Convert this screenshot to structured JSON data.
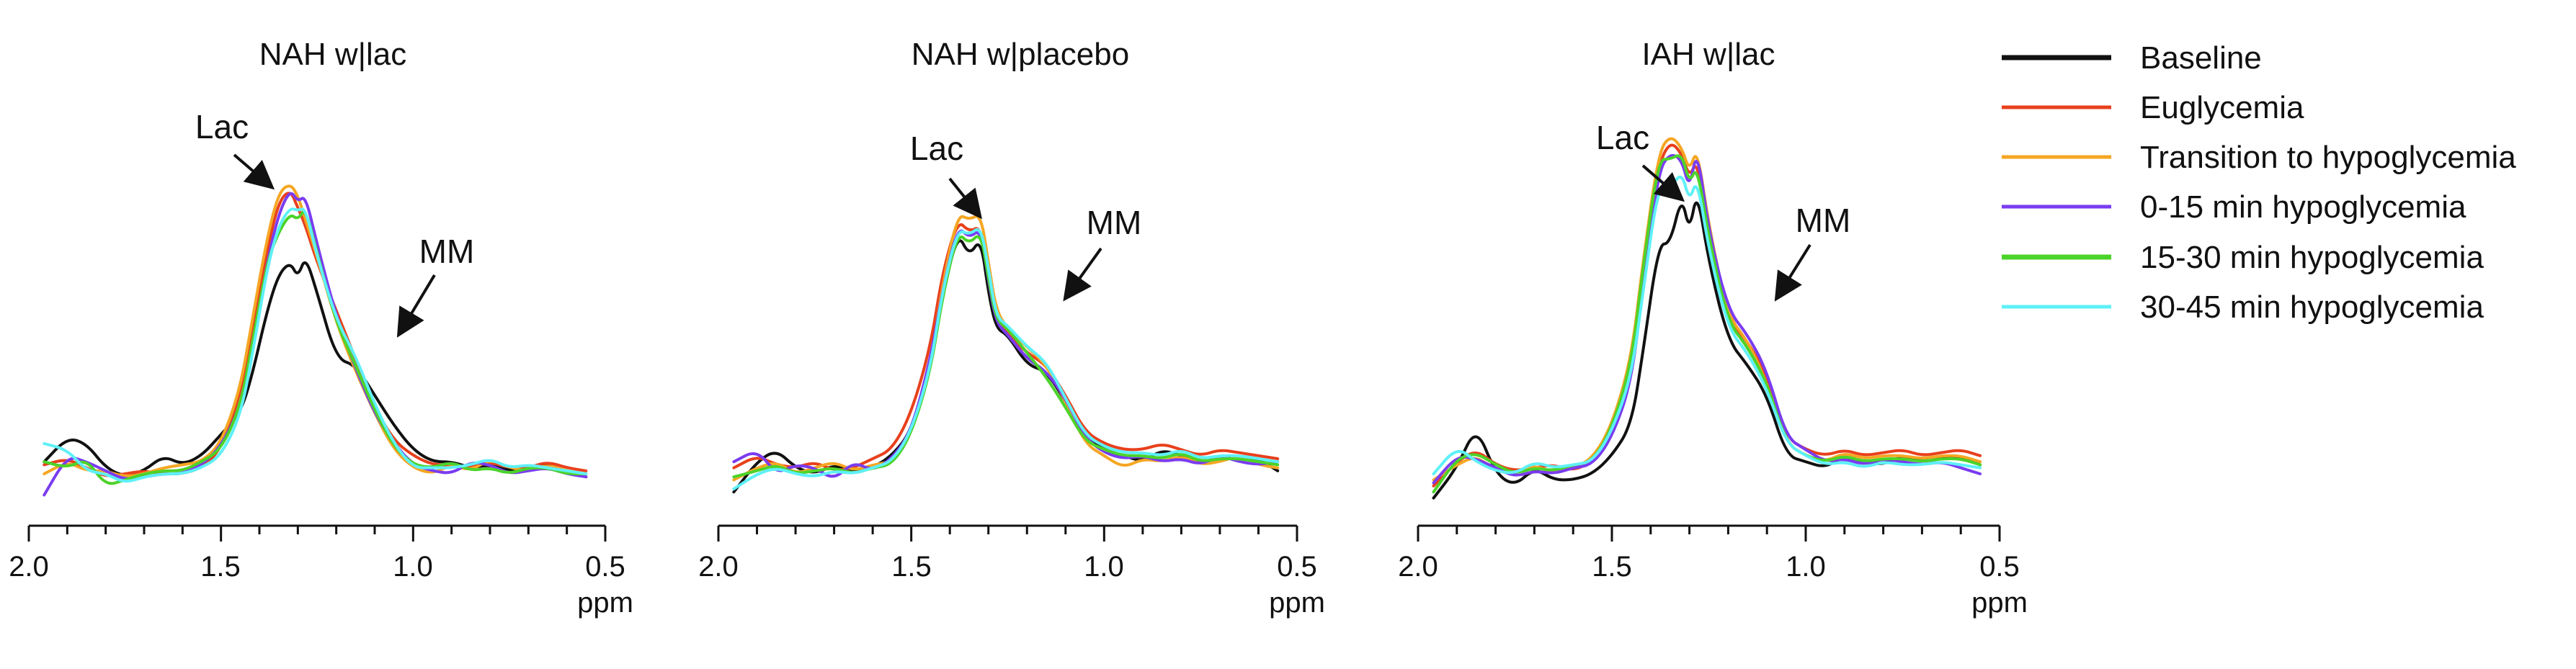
{
  "chart_data": {
    "type": "line",
    "xlabel": "ppm",
    "xlim": [
      2.0,
      0.5
    ],
    "x_ticks": [
      "2.0",
      "1.5",
      "1.0",
      "0.5"
    ],
    "x_tick_values": [
      2.0,
      1.5,
      1.0,
      0.5
    ],
    "minor_tick_step": 0.1,
    "grid": false,
    "legend_position": "right",
    "series_colors": {
      "Baseline": "#111111",
      "Euglycemia": "#e8401c",
      "Transition to hypoglycemia": "#f5a623",
      "0-15 min hypoglycemia": "#7a3cf0",
      "15-30 min hypoglycemia": "#4cd32a",
      "30-45 min hypoglycemia": "#5ef0f8"
    },
    "legend": [
      "Baseline",
      "Euglycemia",
      "Transition to hypoglycemia",
      "0-15 min hypoglycemia",
      "15-30 min hypoglycemia",
      "30-45 min hypoglycemia"
    ],
    "x": [
      1.96,
      1.9,
      1.85,
      1.8,
      1.75,
      1.7,
      1.65,
      1.6,
      1.55,
      1.5,
      1.45,
      1.42,
      1.38,
      1.35,
      1.32,
      1.3,
      1.28,
      1.25,
      1.2,
      1.15,
      1.1,
      1.05,
      1.0,
      0.95,
      0.9,
      0.85,
      0.8,
      0.75,
      0.7,
      0.65,
      0.6,
      0.55
    ],
    "panels": [
      {
        "title": "NAH w|lac",
        "annotations": [
          "Lac",
          "MM"
        ],
        "series": [
          {
            "name": "Baseline",
            "values": [
              1.4,
              2.2,
              2.0,
              1.2,
              0.9,
              1.1,
              1.6,
              1.3,
              1.6,
              2.3,
              3.0,
              4.2,
              6.4,
              7.6,
              8.0,
              7.5,
              8.2,
              7.0,
              4.8,
              4.6,
              3.6,
              2.6,
              1.8,
              1.4,
              1.4,
              1.2,
              1.3,
              1.1,
              1.2,
              1.3,
              1.1,
              0.9
            ]
          },
          {
            "name": "Euglycemia",
            "values": [
              1.3,
              1.5,
              1.2,
              0.9,
              1.0,
              1.1,
              1.0,
              1.0,
              1.2,
              1.8,
              3.6,
              5.6,
              8.4,
              10.0,
              10.4,
              9.8,
              9.2,
              8.0,
              6.4,
              4.8,
              3.2,
              2.1,
              1.6,
              1.3,
              1.3,
              1.2,
              1.4,
              1.2,
              1.2,
              1.4,
              1.2,
              1.1
            ]
          },
          {
            "name": "Transition to hypoglycemia",
            "values": [
              1.0,
              1.4,
              1.1,
              1.1,
              0.9,
              1.0,
              1.2,
              1.3,
              1.4,
              2.0,
              3.8,
              6.0,
              8.8,
              10.3,
              10.6,
              10.2,
              9.4,
              8.2,
              6.0,
              4.4,
              3.0,
              1.8,
              1.2,
              1.0,
              1.3,
              1.1,
              1.5,
              1.2,
              1.1,
              1.3,
              1.1,
              1.0
            ]
          },
          {
            "name": "0-15 min hypoglycemia",
            "values": [
              0.3,
              1.6,
              1.4,
              1.1,
              0.8,
              0.9,
              1.0,
              1.0,
              1.3,
              1.9,
              3.2,
              5.0,
              8.0,
              9.6,
              10.4,
              10.0,
              10.2,
              8.6,
              6.2,
              4.5,
              3.0,
              2.0,
              1.3,
              1.1,
              1.0,
              1.4,
              1.3,
              1.0,
              1.1,
              1.2,
              1.0,
              0.9
            ]
          },
          {
            "name": "15-30 min hypoglycemia",
            "values": [
              1.4,
              1.2,
              1.5,
              0.6,
              0.8,
              1.0,
              1.1,
              1.1,
              1.4,
              1.8,
              3.2,
              5.2,
              8.0,
              9.0,
              9.6,
              9.4,
              9.8,
              8.3,
              6.0,
              4.6,
              3.1,
              1.9,
              1.3,
              1.2,
              1.4,
              1.1,
              1.2,
              1.0,
              1.2,
              1.2,
              1.0,
              1.0
            ]
          },
          {
            "name": "30-45 min hypoglycemia",
            "values": [
              2.0,
              1.8,
              1.1,
              1.0,
              0.7,
              0.9,
              1.0,
              1.0,
              1.2,
              1.6,
              2.9,
              4.8,
              7.8,
              9.2,
              9.8,
              9.7,
              9.8,
              8.2,
              6.1,
              4.9,
              3.3,
              2.0,
              1.2,
              1.2,
              1.2,
              1.3,
              1.5,
              1.2,
              1.3,
              1.2,
              1.1,
              1.0
            ]
          }
        ]
      },
      {
        "title": "NAH w|placebo",
        "annotations": [
          "Lac",
          "MM"
        ],
        "series": [
          {
            "name": "Baseline",
            "values": [
              0.4,
              1.4,
              1.8,
              1.2,
              1.0,
              1.3,
              1.1,
              1.2,
              1.6,
              2.4,
              4.6,
              6.8,
              9.0,
              8.2,
              8.8,
              7.0,
              5.8,
              5.6,
              4.6,
              4.4,
              3.4,
              2.2,
              1.8,
              1.6,
              1.4,
              1.8,
              1.6,
              1.4,
              1.5,
              1.6,
              1.5,
              1.1
            ]
          },
          {
            "name": "Euglycemia",
            "values": [
              1.2,
              1.6,
              1.3,
              1.2,
              1.4,
              1.1,
              1.2,
              1.5,
              1.8,
              3.0,
              5.2,
              7.6,
              9.4,
              9.0,
              9.2,
              7.6,
              6.2,
              5.6,
              5.0,
              4.6,
              3.6,
              2.4,
              2.0,
              1.8,
              1.8,
              2.0,
              1.8,
              1.6,
              1.8,
              1.7,
              1.6,
              1.5
            ]
          },
          {
            "name": "Transition to hypoglycemia",
            "values": [
              0.8,
              1.2,
              1.4,
              1.0,
              1.2,
              1.4,
              1.1,
              1.3,
              1.4,
              2.4,
              4.6,
              7.2,
              9.6,
              9.4,
              9.6,
              8.0,
              6.4,
              5.8,
              5.2,
              4.6,
              3.4,
              2.0,
              1.6,
              1.2,
              1.5,
              1.4,
              1.6,
              1.3,
              1.4,
              1.6,
              1.3,
              1.2
            ]
          },
          {
            "name": "0-15 min hypoglycemia",
            "values": [
              1.4,
              1.8,
              1.0,
              1.3,
              1.2,
              0.8,
              1.4,
              1.1,
              1.5,
              2.4,
              4.8,
              7.0,
              9.2,
              8.8,
              9.1,
              7.4,
              6.0,
              5.6,
              4.8,
              4.4,
              3.5,
              2.2,
              1.7,
              1.5,
              1.6,
              1.4,
              1.5,
              1.3,
              1.6,
              1.4,
              1.3,
              1.4
            ]
          },
          {
            "name": "15-30 min hypoglycemia",
            "values": [
              0.9,
              1.1,
              1.3,
              1.0,
              1.1,
              1.2,
              1.0,
              1.2,
              1.3,
              2.3,
              4.4,
              6.8,
              9.0,
              8.6,
              9.0,
              7.5,
              6.1,
              5.8,
              5.0,
              4.2,
              3.2,
              2.1,
              1.8,
              1.6,
              1.6,
              1.5,
              1.7,
              1.4,
              1.5,
              1.5,
              1.4,
              1.3
            ]
          },
          {
            "name": "30-45 min hypoglycemia",
            "values": [
              0.5,
              1.0,
              1.2,
              1.0,
              0.9,
              1.1,
              1.0,
              1.2,
              1.4,
              2.4,
              4.5,
              7.0,
              9.1,
              8.9,
              9.2,
              7.8,
              6.2,
              5.9,
              5.2,
              4.7,
              3.5,
              2.3,
              1.9,
              1.7,
              1.7,
              1.6,
              1.8,
              1.5,
              1.6,
              1.6,
              1.5,
              1.4
            ]
          }
        ]
      },
      {
        "title": "IAH w|lac",
        "annotations": [
          "Lac",
          "MM"
        ],
        "series": [
          {
            "name": "Baseline",
            "values": [
              0.2,
              1.2,
              2.6,
              1.0,
              0.6,
              1.2,
              0.8,
              0.8,
              1.0,
              1.6,
              2.6,
              5.0,
              8.6,
              8.6,
              10.2,
              9.0,
              10.4,
              8.0,
              5.4,
              4.6,
              3.6,
              1.6,
              1.4,
              1.2,
              1.6,
              1.4,
              1.3,
              1.6,
              1.4,
              1.5,
              1.6,
              1.3
            ]
          },
          {
            "name": "Euglycemia",
            "values": [
              0.6,
              1.4,
              1.8,
              1.3,
              1.1,
              1.2,
              1.3,
              1.1,
              1.4,
              2.4,
              4.4,
              7.6,
              11.2,
              12.0,
              11.6,
              10.8,
              11.4,
              9.0,
              6.0,
              5.4,
              4.2,
              2.2,
              1.8,
              1.6,
              1.8,
              1.6,
              1.7,
              1.8,
              1.6,
              1.7,
              1.8,
              1.6
            ]
          },
          {
            "name": "Transition to hypoglycemia",
            "values": [
              0.8,
              1.3,
              1.6,
              1.1,
              1.0,
              1.3,
              1.0,
              1.2,
              1.5,
              2.6,
              4.8,
              8.0,
              11.6,
              12.2,
              11.8,
              11.0,
              11.8,
              9.2,
              6.2,
              5.4,
              4.0,
              2.0,
              1.6,
              1.4,
              1.7,
              1.5,
              1.6,
              1.6,
              1.5,
              1.6,
              1.6,
              1.4
            ]
          },
          {
            "name": "0-15 min hypoglycemia",
            "values": [
              0.7,
              1.6,
              1.5,
              1.2,
              0.9,
              1.1,
              1.0,
              1.2,
              1.3,
              2.2,
              4.0,
              7.2,
              11.0,
              11.6,
              11.4,
              10.4,
              11.8,
              9.0,
              6.4,
              5.6,
              4.4,
              2.2,
              1.8,
              1.4,
              1.5,
              1.3,
              1.5,
              1.4,
              1.3,
              1.4,
              1.2,
              1.0
            ]
          },
          {
            "name": "15-30 min hypoglycemia",
            "values": [
              0.4,
              1.5,
              1.7,
              1.3,
              1.0,
              1.2,
              1.1,
              1.3,
              1.4,
              2.5,
              4.6,
              7.8,
              11.4,
              11.4,
              11.6,
              10.6,
              11.2,
              8.8,
              6.0,
              5.2,
              4.0,
              2.0,
              1.6,
              1.4,
              1.6,
              1.4,
              1.5,
              1.5,
              1.4,
              1.5,
              1.5,
              1.3
            ]
          },
          {
            "name": "30-45 min hypoglycemia",
            "values": [
              1.0,
              1.9,
              1.4,
              1.1,
              1.0,
              1.4,
              1.2,
              1.3,
              1.4,
              2.4,
              4.2,
              7.0,
              10.6,
              10.4,
              11.0,
              10.0,
              10.8,
              8.4,
              5.8,
              5.0,
              3.8,
              2.0,
              1.6,
              1.3,
              1.4,
              1.2,
              1.4,
              1.3,
              1.3,
              1.4,
              1.3,
              1.2
            ]
          }
        ]
      }
    ]
  }
}
